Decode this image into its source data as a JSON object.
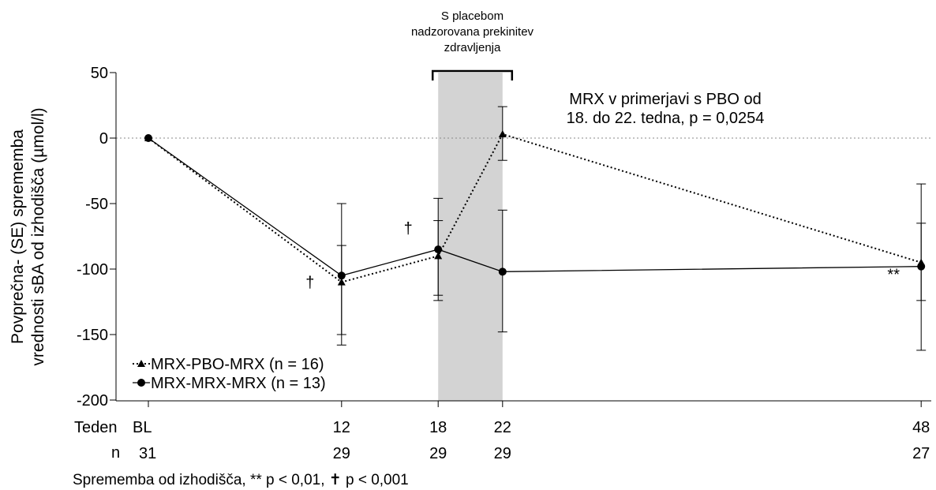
{
  "chart_data": {
    "type": "line",
    "y_label_lines": [
      "Povprečna- (SE) sprememba",
      "vrednosti sBA od izhodišča (µmol/l)"
    ],
    "yticks": [
      50,
      0,
      -50,
      -100,
      -150,
      -200
    ],
    "ylim": [
      -200,
      50
    ],
    "x_row_label": "Teden",
    "x": [
      0,
      12,
      18,
      22,
      48
    ],
    "x_tick_labels": [
      "BL",
      "12",
      "18",
      "22",
      "48"
    ],
    "n_row_label": "n",
    "n_values": [
      "31",
      "29",
      "29",
      "29",
      "27"
    ],
    "series": [
      {
        "name": "MRX-PBO-MRX (n = 16)",
        "marker": "triangle",
        "line": "dotted",
        "values": [
          0,
          -110,
          -90,
          3,
          -95
        ],
        "err_low": [
          0,
          -158,
          -124,
          -17,
          -162
        ],
        "err_high": [
          0,
          -50,
          -46,
          24,
          -35
        ]
      },
      {
        "name": "MRX-MRX-MRX (n = 13)",
        "marker": "circle",
        "line": "solid",
        "values": [
          0,
          -105,
          -85,
          -102,
          -98
        ],
        "err_low": [
          0,
          -150,
          -120,
          -148,
          -124
        ],
        "err_high": [
          0,
          -82,
          -63,
          -55,
          -65
        ]
      }
    ],
    "shaded_region": {
      "x_from": 18,
      "x_to": 22,
      "color": "#d3d3d3"
    },
    "shaded_label_lines": [
      "S placebom",
      "nadzorovana prekinitev",
      "zdravljenja"
    ],
    "comparison_lines": [
      "MRX v primerjavi s PBO od",
      "18. do 22. tedna, p = 0,0254"
    ],
    "markers": [
      {
        "text": "†",
        "near_x": 12
      },
      {
        "text": "†",
        "near_x": 18
      },
      {
        "text": "**",
        "near_x": 48
      }
    ],
    "legend_position": "bottom-left",
    "footnote": "Sprememba od izhodišča, ** p < 0,01, ✝ p < 0,001",
    "grid": false
  }
}
